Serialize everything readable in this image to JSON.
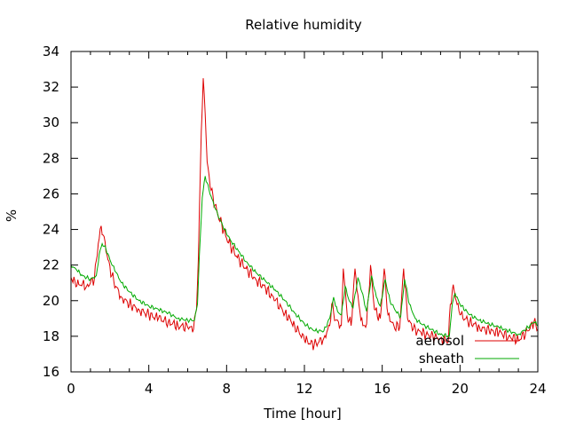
{
  "chart_data": {
    "type": "line",
    "title": "Relative humidity",
    "xlabel": "Time [hour]",
    "ylabel": "%",
    "xlim": [
      0,
      24
    ],
    "ylim": [
      16,
      34
    ],
    "xticks": [
      0,
      4,
      8,
      12,
      16,
      20,
      24
    ],
    "yticks": [
      16,
      18,
      20,
      22,
      24,
      26,
      28,
      30,
      32,
      34
    ],
    "grid": false,
    "legend_position": "bottom-right",
    "series": [
      {
        "name": "aerosol",
        "color": "#dd0000",
        "points": [
          [
            0.0,
            21.3
          ],
          [
            0.2,
            21.1
          ],
          [
            0.4,
            20.9
          ],
          [
            0.6,
            21.0
          ],
          [
            0.8,
            20.8
          ],
          [
            1.0,
            21.0
          ],
          [
            1.2,
            21.2
          ],
          [
            1.4,
            23.2
          ],
          [
            1.55,
            24.2
          ],
          [
            1.7,
            23.6
          ],
          [
            1.9,
            22.3
          ],
          [
            2.1,
            21.4
          ],
          [
            2.3,
            20.8
          ],
          [
            2.6,
            20.2
          ],
          [
            3.0,
            19.8
          ],
          [
            3.5,
            19.5
          ],
          [
            4.0,
            19.2
          ],
          [
            4.5,
            19.0
          ],
          [
            5.0,
            18.8
          ],
          [
            5.5,
            18.6
          ],
          [
            6.0,
            18.5
          ],
          [
            6.3,
            18.4
          ],
          [
            6.45,
            19.5
          ],
          [
            6.55,
            22.5
          ],
          [
            6.7,
            29.5
          ],
          [
            6.8,
            32.5
          ],
          [
            6.9,
            30.5
          ],
          [
            7.0,
            27.8
          ],
          [
            7.2,
            26.2
          ],
          [
            7.5,
            25.0
          ],
          [
            8.0,
            23.5
          ],
          [
            8.5,
            22.5
          ],
          [
            9.0,
            21.8
          ],
          [
            9.5,
            21.2
          ],
          [
            10.0,
            20.7
          ],
          [
            10.5,
            20.0
          ],
          [
            11.0,
            19.3
          ],
          [
            11.5,
            18.6
          ],
          [
            12.0,
            17.8
          ],
          [
            12.5,
            17.5
          ],
          [
            13.0,
            17.9
          ],
          [
            13.3,
            18.6
          ],
          [
            13.4,
            19.8
          ],
          [
            13.6,
            18.9
          ],
          [
            13.9,
            18.6
          ],
          [
            14.0,
            21.8
          ],
          [
            14.2,
            19.2
          ],
          [
            14.4,
            18.6
          ],
          [
            14.6,
            21.8
          ],
          [
            14.8,
            19.8
          ],
          [
            15.0,
            18.6
          ],
          [
            15.2,
            18.7
          ],
          [
            15.4,
            22.0
          ],
          [
            15.6,
            19.5
          ],
          [
            15.9,
            19.0
          ],
          [
            16.1,
            21.8
          ],
          [
            16.3,
            19.2
          ],
          [
            16.6,
            18.6
          ],
          [
            16.9,
            18.5
          ],
          [
            17.1,
            21.8
          ],
          [
            17.3,
            19.0
          ],
          [
            17.6,
            18.4
          ],
          [
            18.0,
            18.2
          ],
          [
            18.5,
            18.0
          ],
          [
            19.0,
            17.9
          ],
          [
            19.4,
            17.7
          ],
          [
            19.5,
            19.8
          ],
          [
            19.65,
            20.9
          ],
          [
            19.8,
            20.0
          ],
          [
            20.0,
            19.2
          ],
          [
            20.5,
            18.8
          ],
          [
            21.0,
            18.5
          ],
          [
            21.5,
            18.3
          ],
          [
            22.0,
            18.2
          ],
          [
            22.5,
            18.0
          ],
          [
            23.0,
            17.8
          ],
          [
            23.5,
            18.3
          ],
          [
            23.8,
            18.8
          ],
          [
            24.0,
            18.4
          ]
        ]
      },
      {
        "name": "sheath",
        "color": "#00aa00",
        "points": [
          [
            0.0,
            22.0
          ],
          [
            0.3,
            21.7
          ],
          [
            0.6,
            21.4
          ],
          [
            1.0,
            21.2
          ],
          [
            1.3,
            21.4
          ],
          [
            1.45,
            22.6
          ],
          [
            1.6,
            23.2
          ],
          [
            1.8,
            22.9
          ],
          [
            2.0,
            22.3
          ],
          [
            2.3,
            21.6
          ],
          [
            2.6,
            21.0
          ],
          [
            3.0,
            20.5
          ],
          [
            3.5,
            20.0
          ],
          [
            4.0,
            19.7
          ],
          [
            4.5,
            19.5
          ],
          [
            5.0,
            19.3
          ],
          [
            5.5,
            19.0
          ],
          [
            6.0,
            18.9
          ],
          [
            6.35,
            18.9
          ],
          [
            6.5,
            19.8
          ],
          [
            6.6,
            22.5
          ],
          [
            6.75,
            25.8
          ],
          [
            6.9,
            27.0
          ],
          [
            7.1,
            26.2
          ],
          [
            7.4,
            25.2
          ],
          [
            7.8,
            24.2
          ],
          [
            8.2,
            23.4
          ],
          [
            8.6,
            22.8
          ],
          [
            9.0,
            22.2
          ],
          [
            9.5,
            21.6
          ],
          [
            10.0,
            21.1
          ],
          [
            10.5,
            20.6
          ],
          [
            11.0,
            20.0
          ],
          [
            11.5,
            19.3
          ],
          [
            12.0,
            18.7
          ],
          [
            12.5,
            18.3
          ],
          [
            13.0,
            18.3
          ],
          [
            13.3,
            19.0
          ],
          [
            13.5,
            20.2
          ],
          [
            13.7,
            19.4
          ],
          [
            13.9,
            19.2
          ],
          [
            14.1,
            20.8
          ],
          [
            14.3,
            20.0
          ],
          [
            14.5,
            19.6
          ],
          [
            14.75,
            21.3
          ],
          [
            14.95,
            20.5
          ],
          [
            15.2,
            19.4
          ],
          [
            15.45,
            21.4
          ],
          [
            15.7,
            20.2
          ],
          [
            15.9,
            19.7
          ],
          [
            16.15,
            21.2
          ],
          [
            16.4,
            20.0
          ],
          [
            16.7,
            19.4
          ],
          [
            16.95,
            19.1
          ],
          [
            17.15,
            21.2
          ],
          [
            17.4,
            19.8
          ],
          [
            17.7,
            19.0
          ],
          [
            18.0,
            18.7
          ],
          [
            18.5,
            18.4
          ],
          [
            19.0,
            18.1
          ],
          [
            19.45,
            18.0
          ],
          [
            19.6,
            19.8
          ],
          [
            19.75,
            20.4
          ],
          [
            20.0,
            19.8
          ],
          [
            20.5,
            19.2
          ],
          [
            21.0,
            18.9
          ],
          [
            21.5,
            18.7
          ],
          [
            22.0,
            18.5
          ],
          [
            22.5,
            18.3
          ],
          [
            23.0,
            18.1
          ],
          [
            23.5,
            18.5
          ],
          [
            23.8,
            18.8
          ],
          [
            24.0,
            18.6
          ]
        ]
      }
    ]
  }
}
